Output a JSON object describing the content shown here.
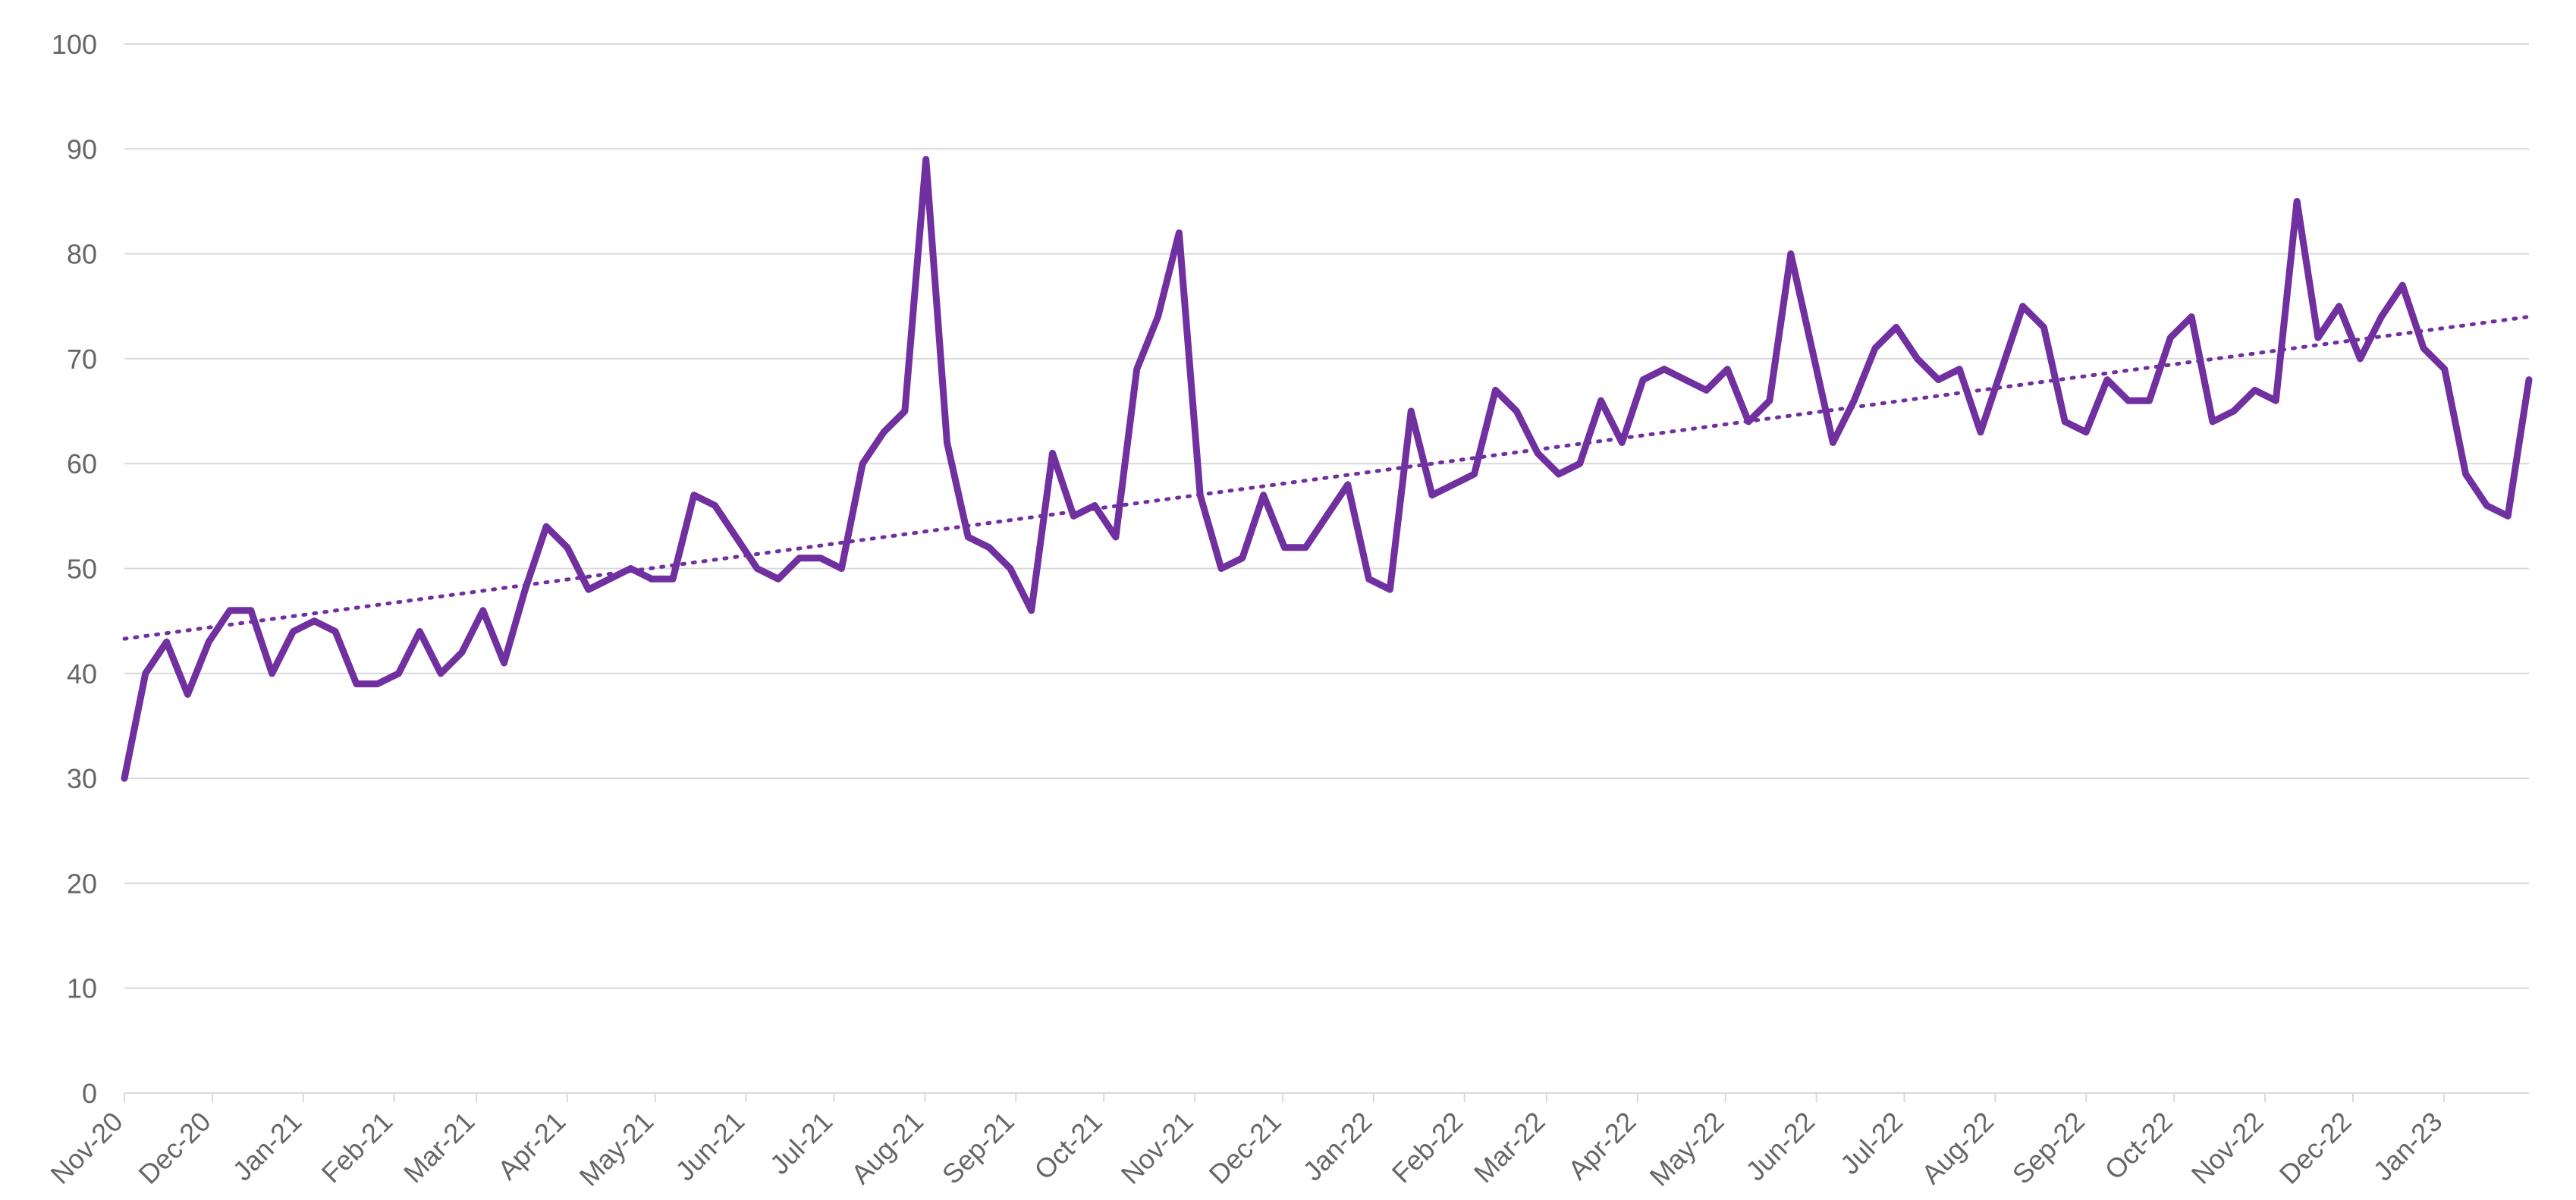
{
  "chart_data": {
    "type": "line",
    "title": "",
    "xlabel": "",
    "ylabel": "",
    "ylim": [
      0,
      100
    ],
    "yticks": [
      0,
      10,
      20,
      30,
      40,
      50,
      60,
      70,
      80,
      90,
      100
    ],
    "x_axis": {
      "unit": "week",
      "start": "2020-11-01",
      "end": "2023-01-30",
      "tick_labels": [
        "Nov-20",
        "Dec-20",
        "Jan-21",
        "Feb-21",
        "Mar-21",
        "Apr-21",
        "May-21",
        "Jun-21",
        "Jul-21",
        "Aug-21",
        "Sep-21",
        "Oct-21",
        "Nov-21",
        "Dec-21",
        "Jan-22",
        "Feb-22",
        "Mar-22",
        "Apr-22",
        "May-22",
        "Jun-22",
        "Jul-22",
        "Aug-22",
        "Sep-22",
        "Oct-22",
        "Nov-22",
        "Dec-22",
        "Jan-23"
      ],
      "tick_dates": [
        "2020-11-01",
        "2020-12-01",
        "2021-01-01",
        "2021-02-01",
        "2021-03-01",
        "2021-04-01",
        "2021-05-01",
        "2021-06-01",
        "2021-07-01",
        "2021-08-01",
        "2021-09-01",
        "2021-10-01",
        "2021-11-01",
        "2021-12-01",
        "2022-01-01",
        "2022-02-01",
        "2022-03-01",
        "2022-04-01",
        "2022-05-01",
        "2022-06-01",
        "2022-07-01",
        "2022-08-01",
        "2022-09-01",
        "2022-10-01",
        "2022-11-01",
        "2022-12-01",
        "2023-01-01"
      ]
    },
    "grid": true,
    "legend": "none",
    "series": [
      {
        "color": "#7030a0",
        "style": "solid",
        "values": [
          30,
          40,
          43,
          38,
          43,
          46,
          46,
          40,
          44,
          45,
          44,
          39,
          39,
          40,
          44,
          40,
          42,
          46,
          41,
          48,
          54,
          52,
          48,
          49,
          50,
          49,
          49,
          57,
          56,
          53,
          50,
          49,
          51,
          51,
          50,
          60,
          63,
          65,
          89,
          62,
          53,
          52,
          50,
          46,
          61,
          55,
          56,
          53,
          69,
          74,
          82,
          57,
          50,
          51,
          57,
          52,
          52,
          55,
          58,
          49,
          48,
          65,
          57,
          58,
          59,
          67,
          65,
          61,
          59,
          60,
          66,
          62,
          68,
          69,
          68,
          67,
          69,
          64,
          66,
          80,
          71,
          62,
          66,
          71,
          73,
          70,
          68,
          69,
          63,
          69,
          75,
          73,
          64,
          63,
          68,
          66,
          66,
          72,
          74,
          64,
          65,
          67,
          66,
          85,
          72,
          75,
          70,
          74,
          77,
          71,
          69,
          59,
          56,
          55,
          68
        ]
      },
      {
        "name": "trend",
        "color": "#7030a0",
        "style": "dotted",
        "type": "linear-trendline",
        "start_value": 43.3,
        "end_value": 74.0
      }
    ]
  }
}
